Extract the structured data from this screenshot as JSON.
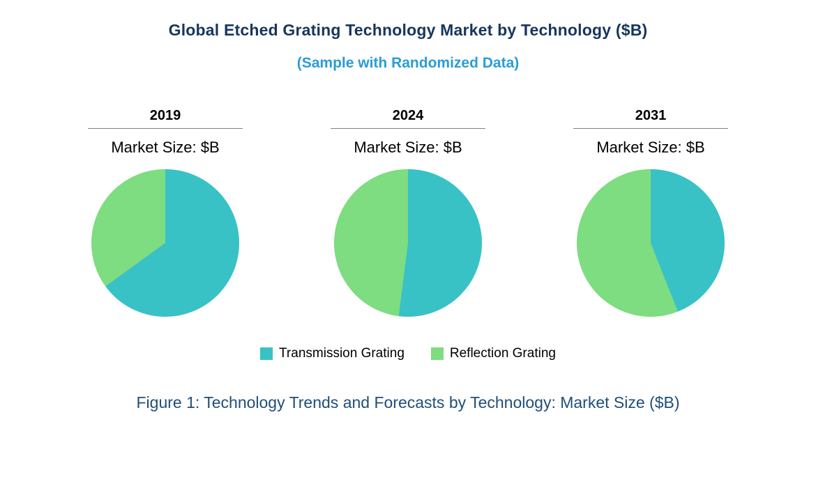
{
  "header": {
    "title": "Global Etched Grating Technology Market by Technology ($B)",
    "subtitle": "(Sample with Randomized Data)"
  },
  "colors": {
    "transmission": "#38C2C6",
    "reflection": "#7EDC81",
    "title_navy": "#17365D",
    "subtitle_blue": "#2A9CD7",
    "caption_blue": "#1F4E79",
    "year_underline_gray": "#808080"
  },
  "chart_data": [
    {
      "type": "pie",
      "year": "2019",
      "label": "Market Size: $B",
      "slices": [
        {
          "name": "Transmission Grating",
          "share_pct": 65,
          "color": "#38C2C6"
        },
        {
          "name": "Reflection Grating",
          "share_pct": 35,
          "color": "#7EDC81"
        }
      ],
      "start_angle_deg": 0,
      "direction": "clockwise"
    },
    {
      "type": "pie",
      "year": "2024",
      "label": "Market Size: $B",
      "slices": [
        {
          "name": "Transmission Grating",
          "share_pct": 52,
          "color": "#38C2C6"
        },
        {
          "name": "Reflection Grating",
          "share_pct": 48,
          "color": "#7EDC81"
        }
      ],
      "start_angle_deg": 0,
      "direction": "clockwise"
    },
    {
      "type": "pie",
      "year": "2031",
      "label": "Market Size: $B",
      "slices": [
        {
          "name": "Transmission Grating",
          "share_pct": 44,
          "color": "#38C2C6"
        },
        {
          "name": "Reflection Grating",
          "share_pct": 56,
          "color": "#7EDC81"
        }
      ],
      "start_angle_deg": 0,
      "direction": "clockwise"
    }
  ],
  "legend": [
    {
      "label": "Transmission Grating",
      "color": "#38C2C6"
    },
    {
      "label": "Reflection Grating",
      "color": "#7EDC81"
    }
  ],
  "caption": "Figure 1: Technology Trends and Forecasts by Technology: Market Size ($B)"
}
